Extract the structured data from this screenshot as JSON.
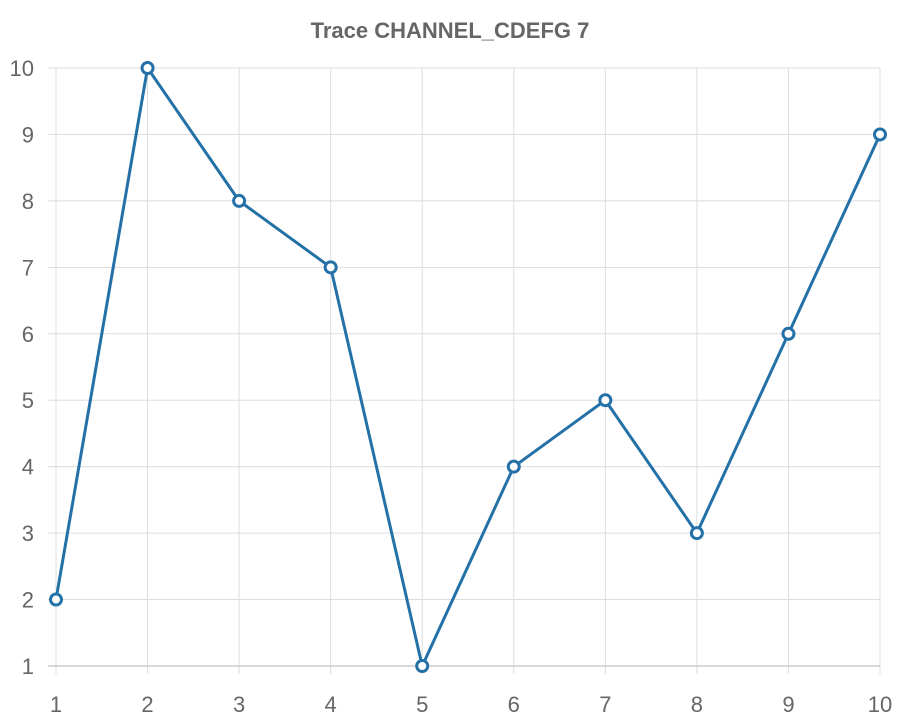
{
  "chart_data": {
    "type": "line",
    "title": "Trace CHANNEL_CDEFG 7",
    "xlabel": "",
    "ylabel": "",
    "x": [
      1,
      2,
      3,
      4,
      5,
      6,
      7,
      8,
      9,
      10
    ],
    "series": [
      {
        "values": [
          2,
          10,
          8,
          7,
          1,
          4,
          5,
          3,
          6,
          9
        ],
        "color": "#2471a8"
      }
    ],
    "xlim": [
      1,
      10
    ],
    "ylim": [
      1,
      10
    ],
    "x_ticks": [
      "1",
      "2",
      "3",
      "4",
      "5",
      "6",
      "7",
      "8",
      "9",
      "10"
    ],
    "y_ticks": [
      "1",
      "2",
      "3",
      "4",
      "5",
      "6",
      "7",
      "8",
      "9",
      "10"
    ],
    "grid": true,
    "legend": false,
    "colors": {
      "grid": "#dddddd",
      "text": "#666666"
    }
  }
}
